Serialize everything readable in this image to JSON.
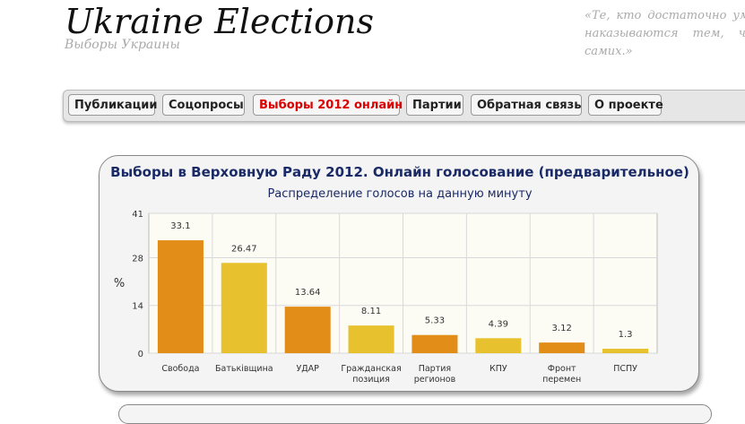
{
  "header": {
    "title": "Ukraine Elections",
    "subtitle": "Выборы Украины",
    "quote": "«Те, кто достаточно умен наказываются тем, что самих.»"
  },
  "nav": {
    "items": [
      {
        "label": "Публикации"
      },
      {
        "label": "Соцопросы"
      },
      {
        "label": "Выборы 2012 онлайн"
      },
      {
        "label": "Партии"
      },
      {
        "label": "Обратная связь"
      },
      {
        "label": "О проекте"
      }
    ]
  },
  "colors": {
    "bar_orange": "#e38d19",
    "bar_yellow": "#e8c22e",
    "title_navy": "#1a2a66",
    "active_nav": "#dd0000"
  },
  "chart_data": {
    "type": "bar",
    "title": "Выборы в Верховную Раду 2012. Онлайн голосование (предварительное)",
    "subtitle": "Распределение голосов на данную минуту",
    "xlabel": "",
    "ylabel": "%",
    "ylim": [
      0,
      41
    ],
    "yticks": [
      "0",
      "14",
      "28",
      "41"
    ],
    "grid": true,
    "categories": [
      [
        "Свобода"
      ],
      [
        "Батьківщина"
      ],
      [
        "УДАР"
      ],
      [
        "Гражданская",
        "позиция"
      ],
      [
        "Партия",
        "регионов"
      ],
      [
        "КПУ"
      ],
      [
        "Фронт",
        "перемен"
      ],
      [
        "ПСПУ"
      ]
    ],
    "values": [
      33.1,
      26.47,
      13.64,
      8.11,
      5.33,
      4.39,
      3.12,
      1.3
    ],
    "value_labels": [
      "33.1",
      "26.47",
      "13.64",
      "8.11",
      "5.33",
      "4.39",
      "3.12",
      "1.3"
    ],
    "bar_colors": [
      "#e38d19",
      "#e8c22e",
      "#e38d19",
      "#e8c22e",
      "#e38d19",
      "#e8c22e",
      "#e38d19",
      "#e8c22e"
    ]
  }
}
